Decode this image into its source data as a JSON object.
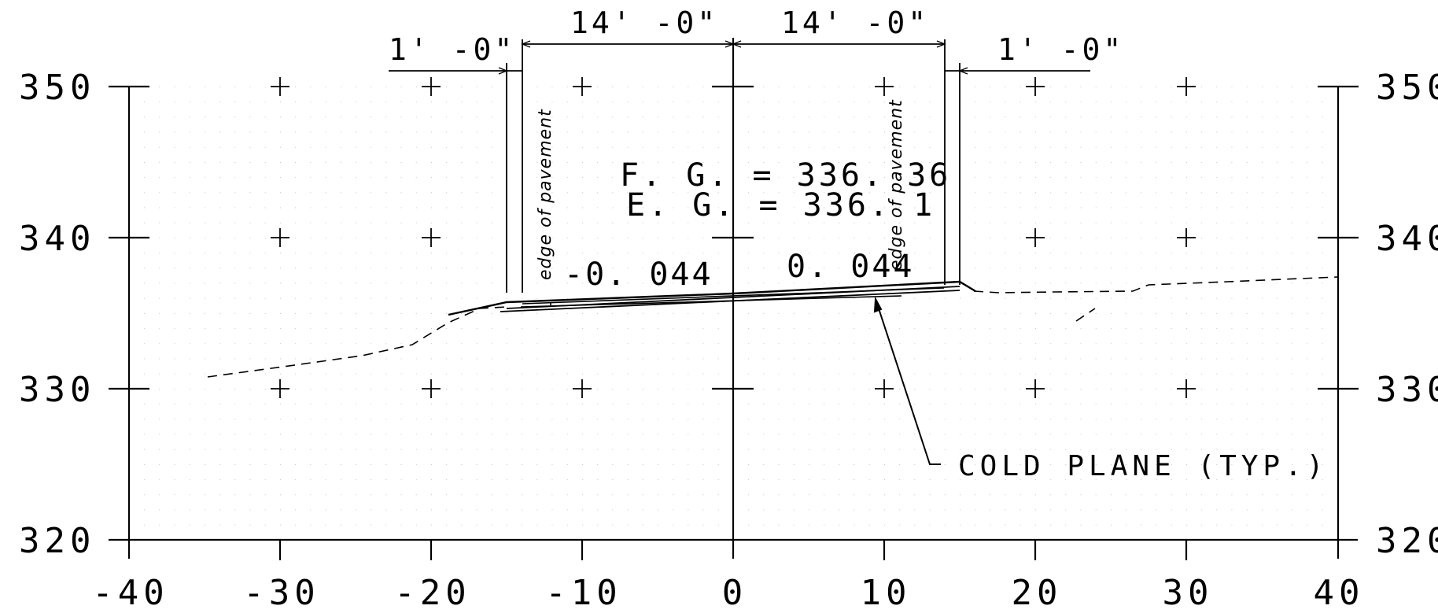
{
  "x_axis": {
    "range": [
      -40,
      40
    ],
    "ticks": [
      "-40",
      "-30",
      "-20",
      "-10",
      "0",
      "10",
      "20",
      "30",
      "40"
    ]
  },
  "y_axis": {
    "range": [
      320,
      350
    ],
    "ticks": [
      "320",
      "330",
      "340",
      "350"
    ]
  },
  "dimensions": {
    "left_shoulder": "1' -0\"",
    "left_lane": "14' -0\"",
    "right_lane": "14' -0\"",
    "right_shoulder": "1' -0\""
  },
  "grades": {
    "finished": "F. G.  =  336. 36",
    "existing": "E. G.  =  336. 1"
  },
  "slopes": {
    "left": "-0. 044",
    "right": "0. 044"
  },
  "edge_of_pavement_left": "edge  of  pavement",
  "edge_of_pavement_right": "edge  of  pavement",
  "callout": "COLD PLANE  (TYP.)",
  "profile": {
    "finished_grade": [
      [
        -15,
        335.7
      ],
      [
        0,
        336.36
      ],
      [
        15,
        337.0
      ]
    ],
    "existing_ground": [
      [
        -35,
        330.8
      ],
      [
        -25,
        332.2
      ],
      [
        -20,
        333.0
      ],
      [
        -15,
        335.4
      ],
      [
        0,
        336.1
      ],
      [
        15,
        336.6
      ],
      [
        20,
        336.2
      ],
      [
        27,
        336.3
      ],
      [
        40,
        337.3
      ]
    ]
  }
}
